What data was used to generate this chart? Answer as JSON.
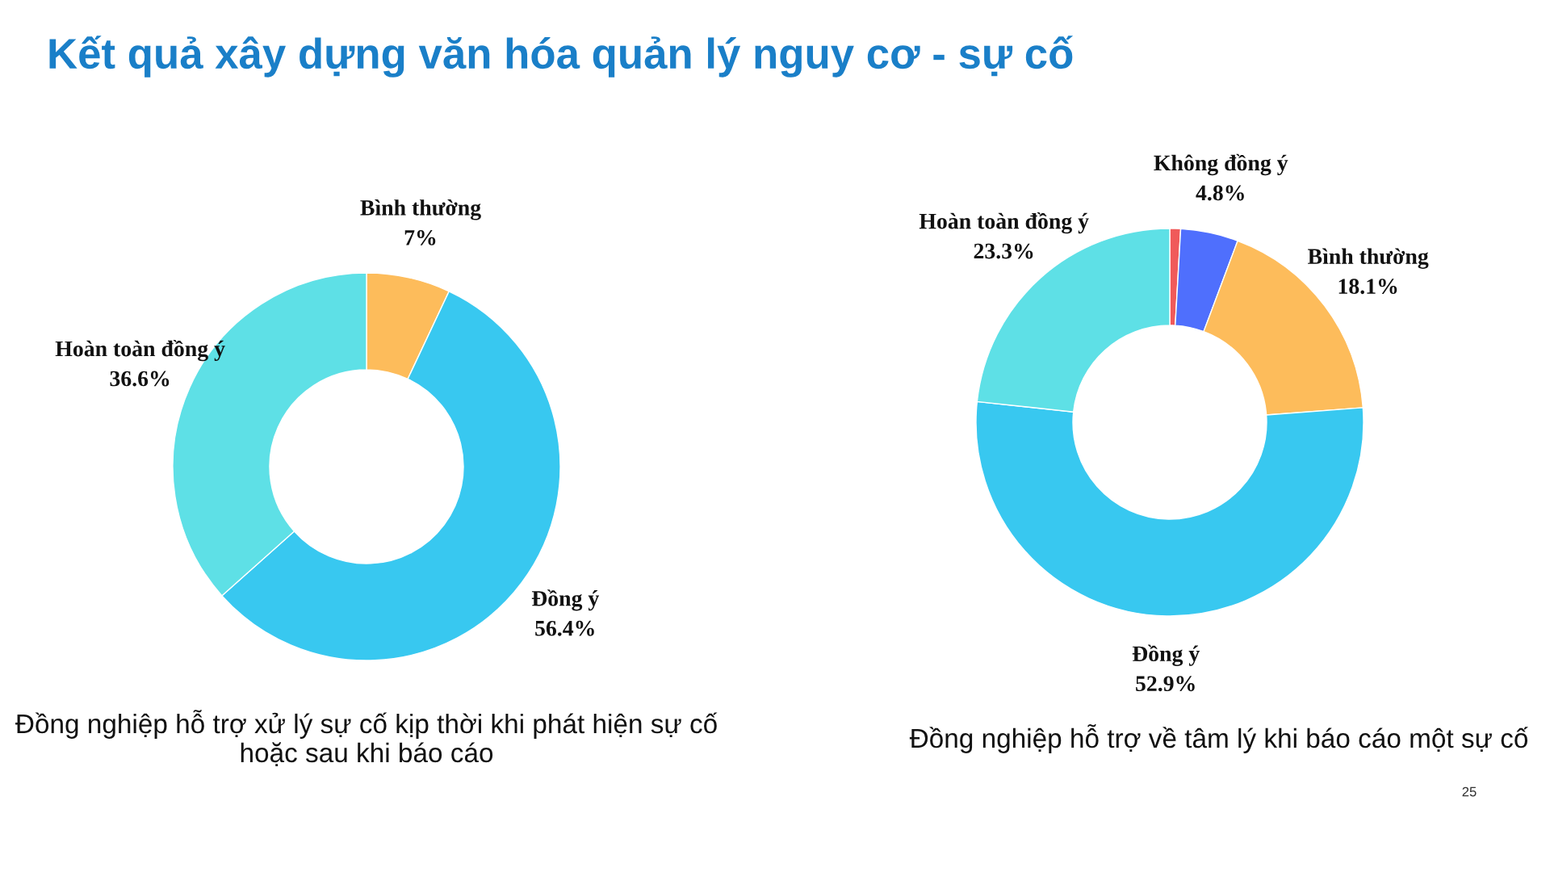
{
  "chart_data": [
    {
      "type": "donut",
      "title": "Kết quả xây dựng văn hóa quản lý nguy cơ - sự cố",
      "categories": [
        "Bình thường",
        "Đồng ý",
        "Hoàn toàn đồng ý"
      ],
      "values": [
        7,
        56.4,
        36.6
      ],
      "value_labels": [
        "7%",
        "56.4%",
        "36.6%"
      ],
      "colors": [
        "#fdbc5b",
        "#38c8f0",
        "#5ee0e6"
      ],
      "annotations": [
        "Đồng nghiệp hỗ trợ xử lý sự cố kịp thời khi phát hiện sự cố hoặc sau khi báo cáo"
      ]
    },
    {
      "type": "donut",
      "categories": [
        null,
        "Không đồng ý",
        "Bình thường",
        "Đồng ý",
        "Hoàn toàn đồng ý"
      ],
      "values": [
        0.9,
        4.8,
        18.1,
        52.9,
        23.3
      ],
      "value_labels": [
        null,
        "4.8%",
        "18.1%",
        "52.9%",
        "23.3%"
      ],
      "colors": [
        "#f05a5a",
        "#4f6ffd",
        "#fdbc5b",
        "#38c8f0",
        "#5ee0e6"
      ],
      "annotations": [
        "Đồng nghiệp hỗ trợ về tâm lý khi báo cáo một sự cố",
        "25"
      ]
    }
  ]
}
